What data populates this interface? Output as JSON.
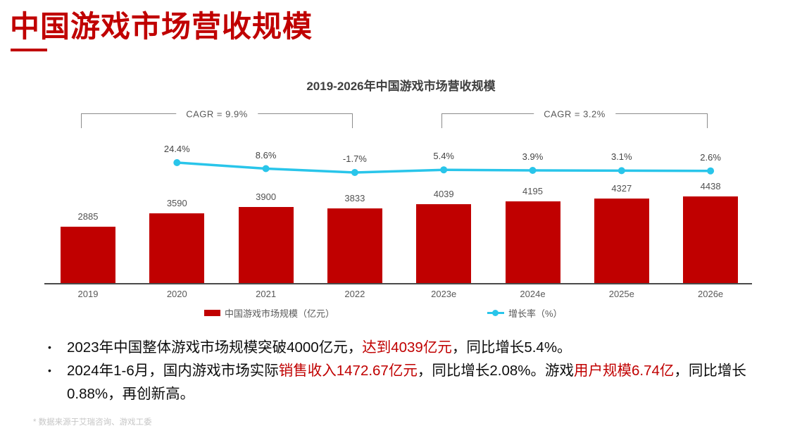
{
  "page": {
    "title": "中国游戏市场营收规模",
    "footnote": "* 数据来源于艾瑞咨询、游戏工委"
  },
  "chart_data": {
    "type": "bar",
    "title": "2019-2026年中国游戏市场营收规模",
    "categories": [
      "2019",
      "2020",
      "2021",
      "2022",
      "2023e",
      "2024e",
      "2025e",
      "2026e"
    ],
    "series": [
      {
        "name": "中国游戏市场规模（亿元）",
        "type": "bar",
        "color": "#c00000",
        "values": [
          2885,
          3590,
          3900,
          3833,
          4039,
          4195,
          4327,
          4438
        ]
      },
      {
        "name": "增长率（%）",
        "type": "line",
        "color": "#29c5ea",
        "values": [
          null,
          24.4,
          8.6,
          -1.7,
          5.4,
          3.9,
          3.1,
          2.6
        ],
        "labels": [
          "",
          "24.4%",
          "8.6%",
          "-1.7%",
          "5.4%",
          "3.9%",
          "3.1%",
          "2.6%"
        ]
      }
    ],
    "annotations": [
      {
        "label": "CAGR = 9.9%",
        "span": "2019-2022"
      },
      {
        "label": "CAGR = 3.2%",
        "span": "2023e-2026e"
      }
    ],
    "value_labels": true,
    "legend_position": "bottom",
    "ylim_bars": [
      0,
      4438
    ],
    "grid": false
  },
  "bullet_marker": "•",
  "bullets": [
    {
      "segments": [
        {
          "text": "2023年中国整体游戏市场规模突破4000亿元，",
          "red": false
        },
        {
          "text": "达到4039亿元",
          "red": true
        },
        {
          "text": "，同比增长5.4%。",
          "red": false
        }
      ]
    },
    {
      "segments": [
        {
          "text": "2024年1-6月，国内游戏市场实际",
          "red": false
        },
        {
          "text": "销售收入1472.67亿元",
          "red": true
        },
        {
          "text": "，同比增长2.08%。游戏",
          "red": false
        },
        {
          "text": "用户规模6.74亿",
          "red": true
        },
        {
          "text": "，同比增长0.88%，再创新高。",
          "red": false
        }
      ]
    }
  ]
}
